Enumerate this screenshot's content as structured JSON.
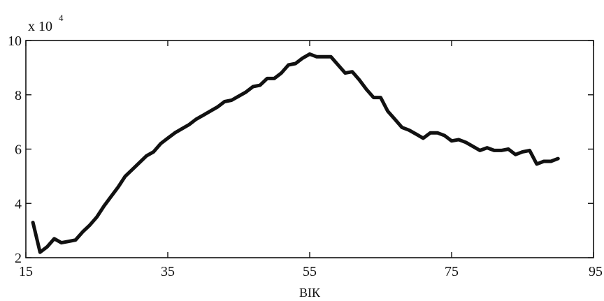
{
  "chart_data": {
    "type": "line",
    "title": "",
    "xlabel": "ВІК",
    "ylabel": "",
    "y_multiplier": {
      "base": "x 10",
      "exponent": "4"
    },
    "xlim": [
      15,
      95
    ],
    "ylim": [
      2,
      10
    ],
    "xticks": [
      15,
      35,
      55,
      75,
      95
    ],
    "yticks": [
      2,
      4,
      6,
      8,
      10
    ],
    "grid": false,
    "line_color": "#111111",
    "series": [
      {
        "x": [
          16,
          17,
          18,
          19,
          20,
          21,
          22,
          23,
          24,
          25,
          26,
          27,
          28,
          29,
          30,
          31,
          32,
          33,
          34,
          35,
          36,
          37,
          38,
          39,
          40,
          41,
          42,
          43,
          44,
          45,
          46,
          47,
          48,
          49,
          50,
          51,
          52,
          53,
          54,
          55,
          56,
          57,
          58,
          59,
          60,
          61,
          62,
          63,
          64,
          65,
          66,
          67,
          68,
          69,
          70,
          71,
          72,
          73,
          74,
          75,
          76,
          77,
          78,
          79,
          80,
          81,
          82,
          83,
          84,
          85,
          86,
          87,
          88,
          89,
          90
        ],
        "y": [
          3.3,
          2.2,
          2.4,
          2.7,
          2.55,
          2.6,
          2.65,
          2.95,
          3.2,
          3.5,
          3.9,
          4.25,
          4.6,
          5.0,
          5.25,
          5.5,
          5.75,
          5.9,
          6.2,
          6.4,
          6.6,
          6.75,
          6.9,
          7.1,
          7.25,
          7.4,
          7.55,
          7.75,
          7.8,
          7.95,
          8.1,
          8.3,
          8.35,
          8.6,
          8.6,
          8.8,
          9.1,
          9.15,
          9.35,
          9.5,
          9.4,
          9.4,
          9.4,
          9.1,
          8.8,
          8.85,
          8.55,
          8.2,
          7.9,
          7.9,
          7.4,
          7.1,
          6.8,
          6.7,
          6.55,
          6.4,
          6.6,
          6.6,
          6.5,
          6.3,
          6.35,
          6.25,
          6.1,
          5.95,
          6.05,
          5.95,
          5.95,
          6.0,
          5.8,
          5.9,
          5.95,
          5.45,
          5.55,
          5.55,
          5.65
        ]
      }
    ]
  }
}
